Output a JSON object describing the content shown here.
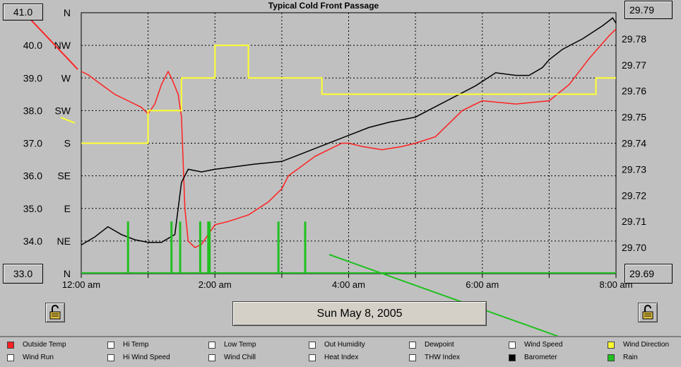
{
  "title": "Typical Cold Front Passage",
  "date_button_label": "Sun May 8, 2005",
  "left_top_value": "41.0",
  "left_bottom_value": "33.0",
  "right_top_value": "29.79",
  "right_bottom_value": "29.69",
  "colors": {
    "temp": "#ff2020",
    "baro": "#000000",
    "wind": "#ffff30",
    "rain": "#20c020",
    "grid": "#000000",
    "plot_bg": "#c0c0c0"
  },
  "legend": [
    {
      "label": "Outside Temp",
      "color": "#ff2020",
      "checked": true
    },
    {
      "label": "Hi Temp",
      "color": "#ffffff",
      "checked": false
    },
    {
      "label": "Low Temp",
      "color": "#ffffff",
      "checked": false
    },
    {
      "label": "Out Humidity",
      "color": "#ffffff",
      "checked": false
    },
    {
      "label": "Dewpoint",
      "color": "#ffffff",
      "checked": false
    },
    {
      "label": "Wind Speed",
      "color": "#ffffff",
      "checked": false
    },
    {
      "label": "Wind Direction",
      "color": "#ffff30",
      "checked": true
    },
    {
      "label": "Wind Run",
      "color": "#ffffff",
      "checked": false
    },
    {
      "label": "Hi Wind Speed",
      "color": "#ffffff",
      "checked": false
    },
    {
      "label": "Wind Chill",
      "color": "#ffffff",
      "checked": false
    },
    {
      "label": "Heat Index",
      "color": "#ffffff",
      "checked": false
    },
    {
      "label": "THW Index",
      "color": "#ffffff",
      "checked": false
    },
    {
      "label": "Barometer",
      "color": "#000000",
      "checked": true
    },
    {
      "label": "Rain",
      "color": "#20c020",
      "checked": true
    }
  ],
  "chart_data": {
    "type": "line",
    "title": "Typical Cold Front Passage",
    "x_tick_labels": [
      "12:00 am",
      "2:00 am",
      "4:00 am",
      "6:00 am",
      "8:00 am"
    ],
    "x_range_hours": [
      0,
      8
    ],
    "y_left_range": [
      33.0,
      41.0
    ],
    "y_left_tick_labels": [
      "41.0",
      "40.0",
      "39.0",
      "38.0",
      "37.0",
      "36.0",
      "35.0",
      "34.0",
      "33.0"
    ],
    "y_right_range": [
      29.69,
      29.79
    ],
    "y_right_tick_labels": [
      "29.79",
      "29.78",
      "29.77",
      "29.76",
      "29.75",
      "29.74",
      "29.73",
      "29.72",
      "29.71",
      "29.70",
      "29.69"
    ],
    "wind_dir_tick_labels": [
      "N",
      "NW",
      "W",
      "SW",
      "S",
      "SE",
      "E",
      "NE",
      "N"
    ],
    "grid": true,
    "series": [
      {
        "name": "Outside Temp",
        "axis": "left",
        "color": "#ff2020",
        "x": [
          0,
          0.1,
          0.3,
          0.5,
          0.7,
          0.9,
          1.0,
          1.1,
          1.2,
          1.3,
          1.35,
          1.45,
          1.5,
          1.55,
          1.6,
          1.7,
          1.8,
          1.9,
          2.0,
          2.2,
          2.5,
          2.8,
          3.0,
          3.1,
          3.3,
          3.5,
          3.7,
          3.9,
          4.0,
          4.2,
          4.5,
          4.8,
          5.0,
          5.3,
          5.5,
          5.7,
          5.9,
          6.0,
          6.5,
          7.0,
          7.3,
          7.6,
          7.9,
          8.0
        ],
        "y": [
          39.2,
          39.1,
          38.8,
          38.5,
          38.3,
          38.1,
          37.9,
          38.2,
          38.8,
          39.2,
          39.0,
          38.5,
          37.8,
          35.0,
          34.0,
          33.8,
          33.9,
          34.2,
          34.5,
          34.6,
          34.8,
          35.2,
          35.6,
          36.0,
          36.3,
          36.6,
          36.8,
          37.0,
          37.0,
          36.9,
          36.8,
          36.9,
          37.0,
          37.2,
          37.6,
          38.0,
          38.2,
          38.3,
          38.2,
          38.3,
          38.8,
          39.6,
          40.3,
          40.5
        ]
      },
      {
        "name": "Barometer",
        "axis": "right",
        "color": "#000000",
        "x": [
          0,
          0.2,
          0.4,
          0.6,
          0.8,
          1.0,
          1.2,
          1.4,
          1.5,
          1.6,
          1.8,
          2.0,
          2.3,
          2.6,
          3.0,
          3.3,
          3.6,
          4.0,
          4.3,
          4.6,
          5.0,
          5.3,
          5.6,
          5.9,
          6.2,
          6.5,
          6.7,
          6.9,
          7.0,
          7.2,
          7.5,
          7.8,
          7.95,
          8.0
        ],
        "y": [
          29.701,
          29.704,
          29.708,
          29.705,
          29.703,
          29.702,
          29.702,
          29.705,
          29.725,
          29.73,
          29.729,
          29.73,
          29.731,
          29.732,
          29.733,
          29.736,
          29.739,
          29.743,
          29.746,
          29.748,
          29.75,
          29.754,
          29.758,
          29.762,
          29.767,
          29.766,
          29.766,
          29.769,
          29.772,
          29.776,
          29.78,
          29.785,
          29.788,
          29.786
        ]
      },
      {
        "name": "Wind Direction",
        "axis": "direction",
        "color": "#ffff30",
        "x": [
          0,
          0.6,
          0.8,
          1.0,
          1.1,
          1.2,
          1.3,
          1.45,
          1.5,
          2.0,
          2.3,
          2.5,
          3.0,
          3.5,
          3.6,
          4.0,
          4.5,
          5.0,
          5.5,
          6.0,
          6.5,
          7.0,
          7.5,
          7.7,
          8.0
        ],
        "y": [
          "S",
          "S",
          "S",
          "SW",
          "SW",
          "SW",
          "SW",
          "SW",
          "W",
          "NW",
          "NW",
          "W",
          "W",
          "W",
          "WSW",
          "WSW",
          "WSW",
          "WSW",
          "WSW",
          "WSW",
          "WSW",
          "WSW",
          "WSW",
          "W",
          "W"
        ]
      },
      {
        "name": "Rain",
        "axis": "rain",
        "color": "#20c020",
        "spike_hours": [
          0.7,
          1.35,
          1.48,
          1.78,
          1.9,
          1.92,
          2.95,
          3.35
        ]
      }
    ]
  }
}
